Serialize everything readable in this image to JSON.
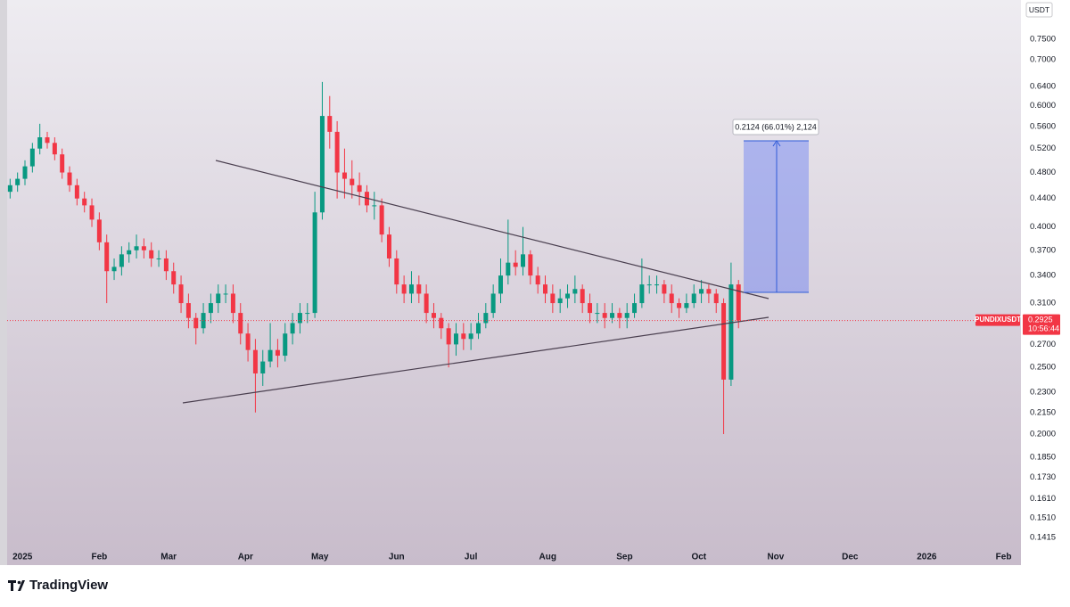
{
  "chart_data": {
    "type": "candlestick",
    "symbol": "PUNDIXUSDT",
    "currency": "USDT",
    "log_scale": true,
    "colors": {
      "up": "#089981",
      "down": "#f23645",
      "last_price": "#f23645"
    },
    "open": [
      0.45,
      0.46,
      0.47,
      0.49,
      0.52,
      0.54,
      0.53,
      0.51,
      0.48,
      0.46,
      0.44,
      0.43,
      0.41,
      0.38,
      0.345,
      0.35,
      0.365,
      0.37,
      0.375,
      0.37,
      0.36,
      0.36,
      0.345,
      0.33,
      0.31,
      0.295,
      0.285,
      0.3,
      0.31,
      0.32,
      0.32,
      0.3,
      0.28,
      0.265,
      0.245,
      0.255,
      0.265,
      0.26,
      0.28,
      0.29,
      0.3,
      0.3,
      0.42,
      0.58,
      0.55,
      0.48,
      0.47,
      0.46,
      0.45,
      0.43,
      0.43,
      0.39,
      0.36,
      0.33,
      0.32,
      0.33,
      0.32,
      0.3,
      0.295,
      0.285,
      0.27,
      0.28,
      0.275,
      0.28,
      0.29,
      0.3,
      0.32,
      0.34,
      0.355,
      0.35,
      0.365,
      0.34,
      0.33,
      0.32,
      0.31,
      0.315,
      0.32,
      0.325,
      0.31,
      0.3,
      0.3,
      0.295,
      0.3,
      0.295,
      0.3,
      0.31,
      0.33,
      0.33,
      0.33,
      0.32,
      0.31,
      0.305,
      0.31,
      0.32,
      0.325,
      0.32,
      0.31,
      0.24,
      0.33
    ],
    "high": [
      0.47,
      0.48,
      0.5,
      0.53,
      0.565,
      0.55,
      0.54,
      0.52,
      0.49,
      0.47,
      0.45,
      0.44,
      0.42,
      0.39,
      0.36,
      0.375,
      0.38,
      0.39,
      0.385,
      0.38,
      0.37,
      0.37,
      0.355,
      0.34,
      0.32,
      0.3,
      0.31,
      0.32,
      0.33,
      0.33,
      0.33,
      0.31,
      0.29,
      0.275,
      0.265,
      0.29,
      0.275,
      0.29,
      0.3,
      0.31,
      0.31,
      0.45,
      0.65,
      0.62,
      0.57,
      0.52,
      0.5,
      0.48,
      0.46,
      0.45,
      0.44,
      0.4,
      0.37,
      0.34,
      0.345,
      0.34,
      0.33,
      0.31,
      0.3,
      0.29,
      0.29,
      0.29,
      0.29,
      0.3,
      0.31,
      0.33,
      0.36,
      0.41,
      0.37,
      0.4,
      0.37,
      0.35,
      0.34,
      0.33,
      0.325,
      0.33,
      0.34,
      0.33,
      0.32,
      0.31,
      0.31,
      0.31,
      0.305,
      0.31,
      0.32,
      0.36,
      0.34,
      0.34,
      0.335,
      0.33,
      0.315,
      0.32,
      0.33,
      0.335,
      0.33,
      0.325,
      0.315,
      0.355,
      0.335
    ],
    "low": [
      0.44,
      0.45,
      0.46,
      0.48,
      0.51,
      0.52,
      0.5,
      0.47,
      0.45,
      0.43,
      0.42,
      0.4,
      0.37,
      0.31,
      0.335,
      0.34,
      0.355,
      0.36,
      0.36,
      0.35,
      0.35,
      0.335,
      0.32,
      0.3,
      0.285,
      0.27,
      0.28,
      0.29,
      0.3,
      0.31,
      0.29,
      0.27,
      0.255,
      0.215,
      0.235,
      0.25,
      0.25,
      0.255,
      0.27,
      0.28,
      0.29,
      0.295,
      0.41,
      0.52,
      0.44,
      0.44,
      0.44,
      0.43,
      0.42,
      0.41,
      0.38,
      0.35,
      0.32,
      0.31,
      0.31,
      0.31,
      0.29,
      0.285,
      0.275,
      0.25,
      0.26,
      0.265,
      0.265,
      0.275,
      0.285,
      0.295,
      0.31,
      0.33,
      0.34,
      0.34,
      0.33,
      0.32,
      0.31,
      0.3,
      0.3,
      0.305,
      0.31,
      0.3,
      0.29,
      0.29,
      0.285,
      0.29,
      0.285,
      0.285,
      0.295,
      0.305,
      0.32,
      0.32,
      0.31,
      0.3,
      0.295,
      0.3,
      0.305,
      0.31,
      0.31,
      0.3,
      0.2,
      0.235,
      0.285
    ],
    "close": [
      0.46,
      0.47,
      0.49,
      0.52,
      0.54,
      0.53,
      0.51,
      0.48,
      0.46,
      0.44,
      0.43,
      0.41,
      0.38,
      0.345,
      0.35,
      0.365,
      0.37,
      0.375,
      0.37,
      0.36,
      0.36,
      0.345,
      0.33,
      0.31,
      0.295,
      0.285,
      0.3,
      0.31,
      0.32,
      0.32,
      0.3,
      0.28,
      0.265,
      0.245,
      0.255,
      0.265,
      0.26,
      0.28,
      0.29,
      0.3,
      0.3,
      0.42,
      0.58,
      0.55,
      0.48,
      0.47,
      0.46,
      0.45,
      0.43,
      0.43,
      0.39,
      0.36,
      0.33,
      0.32,
      0.33,
      0.32,
      0.3,
      0.295,
      0.285,
      0.27,
      0.28,
      0.275,
      0.28,
      0.29,
      0.3,
      0.32,
      0.34,
      0.355,
      0.35,
      0.365,
      0.34,
      0.33,
      0.32,
      0.31,
      0.315,
      0.32,
      0.325,
      0.31,
      0.3,
      0.3,
      0.295,
      0.3,
      0.295,
      0.3,
      0.31,
      0.33,
      0.33,
      0.33,
      0.32,
      0.31,
      0.305,
      0.31,
      0.32,
      0.325,
      0.32,
      0.31,
      0.24,
      0.33,
      0.2925
    ],
    "xlim": [
      -0.4,
      136
    ],
    "xticks": [
      {
        "value": 1.67,
        "label": "2025"
      },
      {
        "value": 12,
        "label": "Feb"
      },
      {
        "value": 21.33,
        "label": "Mar"
      },
      {
        "value": 31.67,
        "label": "Apr"
      },
      {
        "value": 41.67,
        "label": "May"
      },
      {
        "value": 52,
        "label": "Jun"
      },
      {
        "value": 62,
        "label": "Jul"
      },
      {
        "value": 72.33,
        "label": "Aug"
      },
      {
        "value": 82.67,
        "label": "Sep"
      },
      {
        "value": 92.67,
        "label": "Oct"
      },
      {
        "value": 103,
        "label": "Nov"
      },
      {
        "value": 113,
        "label": "Dec"
      },
      {
        "value": 123.33,
        "label": "2026"
      },
      {
        "value": 133.67,
        "label": "Feb"
      }
    ],
    "ylim": [
      0.129,
      0.855
    ],
    "yticks": [
      {
        "value": 0.75,
        "label": "0.7500"
      },
      {
        "value": 0.7,
        "label": "0.7000"
      },
      {
        "value": 0.64,
        "label": "0.6400"
      },
      {
        "value": 0.6,
        "label": "0.6000"
      },
      {
        "value": 0.56,
        "label": "0.5600"
      },
      {
        "value": 0.52,
        "label": "0.5200"
      },
      {
        "value": 0.48,
        "label": "0.4800"
      },
      {
        "value": 0.44,
        "label": "0.4400"
      },
      {
        "value": 0.4,
        "label": "0.4000"
      },
      {
        "value": 0.37,
        "label": "0.3700"
      },
      {
        "value": 0.34,
        "label": "0.3400"
      },
      {
        "value": 0.31,
        "label": "0.3100"
      },
      {
        "value": 0.27,
        "label": "0.2700"
      },
      {
        "value": 0.25,
        "label": "0.2500"
      },
      {
        "value": 0.23,
        "label": "0.2300"
      },
      {
        "value": 0.215,
        "label": "0.2150"
      },
      {
        "value": 0.2,
        "label": "0.2000"
      },
      {
        "value": 0.185,
        "label": "0.1850"
      },
      {
        "value": 0.173,
        "label": "0.1730"
      },
      {
        "value": 0.161,
        "label": "0.1610"
      },
      {
        "value": 0.151,
        "label": "0.1510"
      },
      {
        "value": 0.1415,
        "label": "0.1415"
      }
    ],
    "last_price": 0.2925,
    "countdown": "10:56:44",
    "annotation": "0.2124 (66.01%) 2,124"
  },
  "footer": {
    "brand": "TradingView"
  }
}
